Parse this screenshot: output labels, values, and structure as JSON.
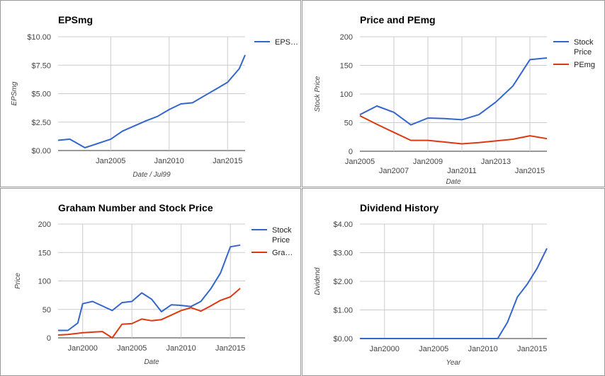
{
  "chart_data": [
    {
      "type": "line",
      "title": "EPSmg",
      "xlabel": "Date / Jul99",
      "ylabel": "EPSmg",
      "ylim": [
        0,
        10
      ],
      "xlim": [
        2000.5,
        2016.5
      ],
      "y_ticks": [
        {
          "v": 0,
          "label": "$0.00"
        },
        {
          "v": 2.5,
          "label": "$2.50"
        },
        {
          "v": 5,
          "label": "$5.00"
        },
        {
          "v": 7.5,
          "label": "$7.50"
        },
        {
          "v": 10,
          "label": "$10.00"
        }
      ],
      "x_ticks": [
        {
          "v": 2005,
          "label": "Jan2005"
        },
        {
          "v": 2010,
          "label": "Jan2010"
        },
        {
          "v": 2015,
          "label": "Jan2015"
        }
      ],
      "x_ticks_alt": [],
      "grid_x": [
        2005,
        2010,
        2015
      ],
      "series": [
        {
          "name": "EPS…",
          "color": "#3366cc",
          "x": [
            2000.5,
            2001.5,
            2002.8,
            2005.0,
            2006.0,
            2008.0,
            2009.0,
            2010.0,
            2011.0,
            2012.0,
            2013.0,
            2014.0,
            2015.0,
            2016.0,
            2016.5
          ],
          "y": [
            0.9,
            1.0,
            0.25,
            1.0,
            1.7,
            2.6,
            3.0,
            3.6,
            4.1,
            4.2,
            4.8,
            5.4,
            6.0,
            7.2,
            8.4
          ]
        }
      ],
      "legend": "right"
    },
    {
      "type": "line",
      "title": "Price and PEmg",
      "xlabel": "Date",
      "ylabel": "Stock Price",
      "ylim": [
        0,
        200
      ],
      "xlim": [
        2005,
        2016
      ],
      "y_ticks": [
        {
          "v": 0,
          "label": "0"
        },
        {
          "v": 50,
          "label": "50"
        },
        {
          "v": 100,
          "label": "100"
        },
        {
          "v": 150,
          "label": "150"
        },
        {
          "v": 200,
          "label": "200"
        }
      ],
      "x_ticks": [
        {
          "v": 2005,
          "label": "Jan2005"
        },
        {
          "v": 2009,
          "label": "Jan2009"
        },
        {
          "v": 2013,
          "label": "Jan2013"
        }
      ],
      "x_ticks_alt": [
        {
          "v": 2007,
          "label": "Jan2007"
        },
        {
          "v": 2011,
          "label": "Jan2011"
        },
        {
          "v": 2015,
          "label": "Jan2015"
        }
      ],
      "grid_x": [
        2007,
        2009,
        2011,
        2013,
        2015
      ],
      "series": [
        {
          "name": "Stock Price",
          "name_lines": [
            "Stock",
            "Price"
          ],
          "color": "#3366cc",
          "x": [
            2005.0,
            2006.0,
            2007.0,
            2008.0,
            2009.0,
            2010.0,
            2011.0,
            2012.0,
            2013.0,
            2014.0,
            2015.0,
            2016.0
          ],
          "y": [
            64,
            79,
            68,
            46,
            58,
            57,
            55,
            64,
            86,
            114,
            160,
            163
          ]
        },
        {
          "name": "PEmg",
          "color": "#dc3912",
          "x": [
            2005.0,
            2006.0,
            2007.0,
            2008.0,
            2009.0,
            2010.0,
            2011.0,
            2012.0,
            2013.0,
            2014.0,
            2015.0,
            2016.0
          ],
          "y": [
            62,
            47,
            33,
            19,
            19,
            16,
            13,
            15,
            18,
            21,
            27,
            22
          ]
        }
      ],
      "legend": "right"
    },
    {
      "type": "line",
      "title": "Graham Number and Stock Price",
      "xlabel": "Date",
      "ylabel": "Price",
      "ylim": [
        0,
        200
      ],
      "xlim": [
        1997.5,
        2016.5
      ],
      "y_ticks": [
        {
          "v": 0,
          "label": "0"
        },
        {
          "v": 50,
          "label": "50"
        },
        {
          "v": 100,
          "label": "100"
        },
        {
          "v": 150,
          "label": "150"
        },
        {
          "v": 200,
          "label": "200"
        }
      ],
      "x_ticks": [
        {
          "v": 2000,
          "label": "Jan2000"
        },
        {
          "v": 2005,
          "label": "Jan2005"
        },
        {
          "v": 2010,
          "label": "Jan2010"
        },
        {
          "v": 2015,
          "label": "Jan2015"
        }
      ],
      "x_ticks_alt": [],
      "grid_x": [
        2000,
        2005,
        2010,
        2015
      ],
      "series": [
        {
          "name": "Stock Price",
          "name_lines": [
            "Stock",
            "Price"
          ],
          "color": "#3366cc",
          "x": [
            1997.5,
            1998.5,
            1999.5,
            2000.0,
            2001.0,
            2002.0,
            2003.0,
            2004.0,
            2005.0,
            2006.0,
            2007.0,
            2008.0,
            2009.0,
            2010.0,
            2011.0,
            2012.0,
            2013.0,
            2014.0,
            2015.0,
            2016.0
          ],
          "y": [
            13,
            13,
            26,
            60,
            64,
            56,
            48,
            62,
            64,
            79,
            68,
            46,
            58,
            57,
            55,
            64,
            86,
            114,
            160,
            163
          ]
        },
        {
          "name": "Gra…",
          "color": "#dc3912",
          "x": [
            1997.5,
            1998.5,
            1999.5,
            2000.0,
            2001.0,
            2002.0,
            2003.0,
            2004.0,
            2005.0,
            2006.0,
            2007.0,
            2008.0,
            2009.0,
            2010.0,
            2011.0,
            2012.0,
            2013.0,
            2014.0,
            2015.0,
            2016.0
          ],
          "y": [
            5,
            6,
            8,
            9,
            10,
            11,
            0,
            24,
            25,
            33,
            30,
            32,
            40,
            48,
            53,
            47,
            56,
            66,
            72,
            87
          ]
        }
      ],
      "legend": "right"
    },
    {
      "type": "line",
      "title": "Dividend History",
      "xlabel": "Year",
      "ylabel": "Dividend",
      "ylim": [
        0,
        4
      ],
      "xlim": [
        1997.5,
        2016.5
      ],
      "y_ticks": [
        {
          "v": 0,
          "label": "$0.00"
        },
        {
          "v": 1,
          "label": "$1.00"
        },
        {
          "v": 2,
          "label": "$2.00"
        },
        {
          "v": 3,
          "label": "$3.00"
        },
        {
          "v": 4,
          "label": "$4.00"
        }
      ],
      "x_ticks": [
        {
          "v": 2000,
          "label": "Jan2000"
        },
        {
          "v": 2005,
          "label": "Jan2005"
        },
        {
          "v": 2010,
          "label": "Jan2010"
        },
        {
          "v": 2015,
          "label": "Jan2015"
        }
      ],
      "x_ticks_alt": [],
      "grid_x": [
        2000,
        2005,
        2010,
        2015
      ],
      "series": [
        {
          "name": "",
          "color": "#3366cc",
          "x": [
            1997.5,
            2000.0,
            2005.0,
            2010.0,
            2011.5,
            2012.5,
            2013.5,
            2014.5,
            2015.5,
            2016.5
          ],
          "y": [
            0,
            0,
            0,
            0,
            0,
            0.57,
            1.45,
            1.9,
            2.45,
            3.15
          ]
        }
      ],
      "legend": "none"
    }
  ]
}
